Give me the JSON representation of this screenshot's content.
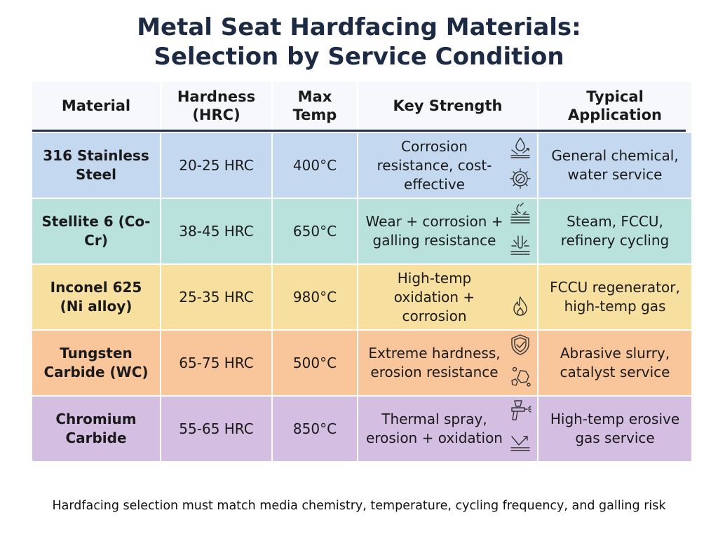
{
  "title": {
    "line1": "Metal Seat Hardfacing Materials:",
    "line2": "Selection by Service Condition"
  },
  "table": {
    "headers": [
      "Material",
      "Hardness\n(HRC)",
      "Max\nTemp",
      "Key Strength",
      "Typical\nApplication"
    ],
    "rows": [
      {
        "material": "316 Stainless Steel",
        "hardness": "20-25 HRC",
        "max_temp": "400°C",
        "key_strength": "Corrosion resistance, cost-effective",
        "application": "General chemical, water service",
        "color": "#c4d9ef",
        "icons": [
          "water-drop-icon",
          "gear-wrench-icon"
        ]
      },
      {
        "material": "Stellite 6 (Co-Cr)",
        "hardness": "38-45 HRC",
        "max_temp": "650°C",
        "key_strength": "Wear + corrosion + galling resistance",
        "application": "Steam, FCCU, refinery cycling",
        "color": "#bae2dd",
        "icons": [
          "wear-surface-icon",
          "galling-impact-icon"
        ]
      },
      {
        "material": "Inconel 625 (Ni alloy)",
        "hardness": "25-35 HRC",
        "max_temp": "980°C",
        "key_strength": "High-temp oxidation + corrosion",
        "application": "FCCU regenerator, high-temp gas",
        "color": "#f7df9f",
        "icons": [
          "flame-icon"
        ]
      },
      {
        "material": "Tungsten Carbide (WC)",
        "hardness": "65-75 HRC",
        "max_temp": "500°C",
        "key_strength": "Extreme hardness, erosion resistance",
        "application": "Abrasive slurry, catalyst service",
        "color": "#f9c59b",
        "icons": [
          "shield-check-icon",
          "particles-icon"
        ]
      },
      {
        "material": "Chromium Carbide",
        "hardness": "55-65 HRC",
        "max_temp": "850°C",
        "key_strength": "Thermal spray, erosion + oxidation",
        "application": "High-temp erosive gas service",
        "color": "#d4bee1",
        "icons": [
          "spray-gun-icon",
          "deflection-icon"
        ]
      }
    ]
  },
  "footer": "Hardfacing selection must match media chemistry, temperature, cycling frequency, and galling risk"
}
